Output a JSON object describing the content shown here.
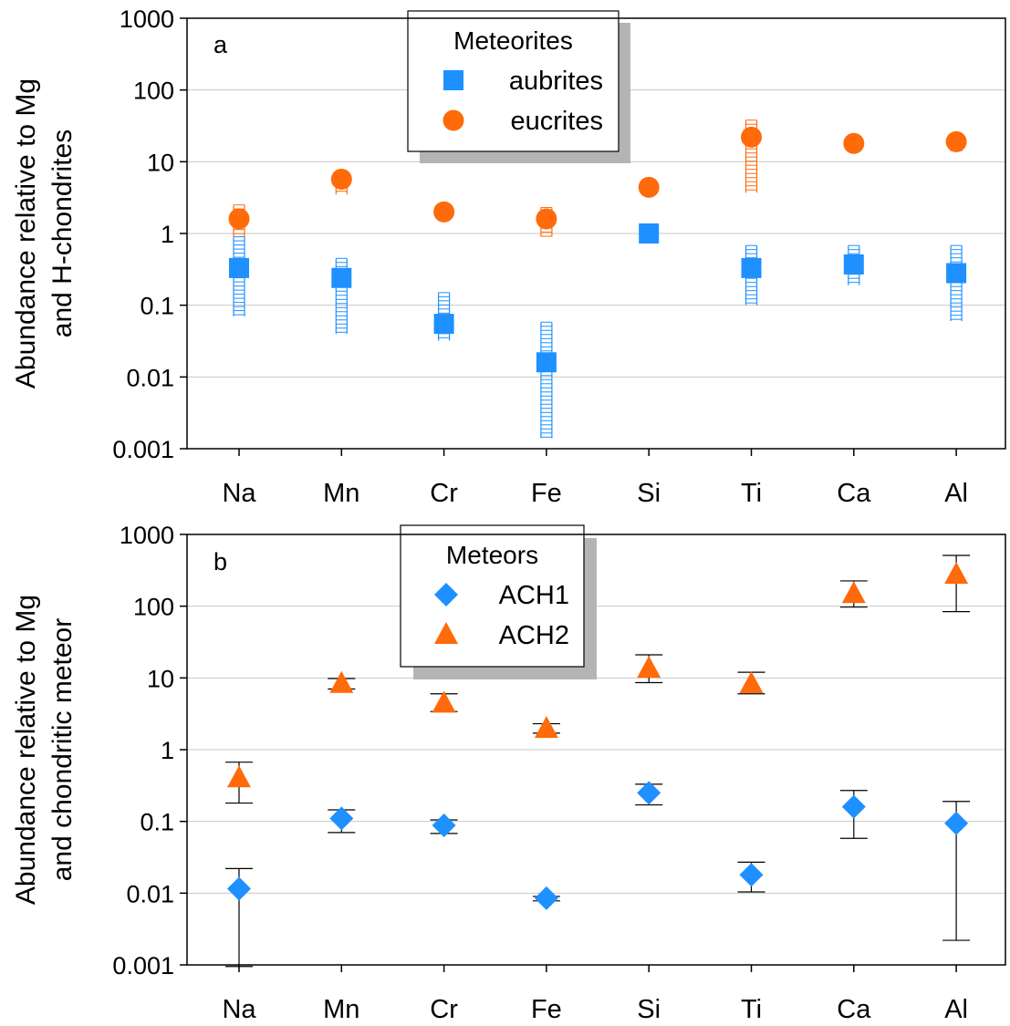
{
  "chart_data": [
    {
      "type": "scatter",
      "panel_label": "a",
      "ylabel_lines": [
        "Abundance relative to Mg",
        "and H-chondrites"
      ],
      "yscale": "log",
      "ylim": [
        0.001,
        1000
      ],
      "yticks": [
        "0.001",
        "0.01",
        "0.1",
        "1",
        "10",
        "100",
        "1000"
      ],
      "categories": [
        "Na",
        "Mn",
        "Cr",
        "Fe",
        "Si",
        "Ti",
        "Ca",
        "Al"
      ],
      "grid": "horizontal",
      "legend": {
        "title": "Meteorites",
        "placement": "top-center"
      },
      "series": [
        {
          "name": "aubrites",
          "marker": "square",
          "color": "#1e90ff",
          "error_style": "hatched",
          "values": [
            0.33,
            0.24,
            0.055,
            0.016,
            1.0,
            0.33,
            0.37,
            0.28
          ],
          "low": [
            0.07,
            0.04,
            0.032,
            0.0014,
            null,
            0.1,
            0.19,
            0.06
          ],
          "high": [
            0.9,
            0.45,
            0.15,
            0.058,
            null,
            0.68,
            0.68,
            0.68
          ]
        },
        {
          "name": "eucrites",
          "marker": "circle",
          "color": "#ff6a0a",
          "error_style": "hatched",
          "values": [
            1.6,
            5.7,
            2.0,
            1.6,
            4.4,
            22,
            18,
            19
          ],
          "low": [
            0.9,
            3.5,
            null,
            0.9,
            null,
            3.7,
            14,
            14
          ],
          "high": [
            2.5,
            7.5,
            null,
            2.3,
            null,
            38,
            21,
            23
          ]
        }
      ]
    },
    {
      "type": "scatter",
      "panel_label": "b",
      "ylabel_lines": [
        "Abundance relative to Mg",
        "and chondritic meteor"
      ],
      "yscale": "log",
      "ylim": [
        0.001,
        1000
      ],
      "yticks": [
        "0.001",
        "0.01",
        "0.1",
        "1",
        "10",
        "100",
        "1000"
      ],
      "categories": [
        "Na",
        "Mn",
        "Cr",
        "Fe",
        "Si",
        "Ti",
        "Ca",
        "Al"
      ],
      "grid": "horizontal",
      "legend": {
        "title": "Meteors",
        "placement": "top-center"
      },
      "series": [
        {
          "name": "ACH1",
          "marker": "diamond",
          "color": "#1e90ff",
          "error_style": "capped",
          "values": [
            0.0115,
            0.11,
            0.088,
            0.0085,
            0.25,
            0.018,
            0.16,
            0.094
          ],
          "low": [
            0.00095,
            0.07,
            0.068,
            0.0078,
            0.17,
            0.0104,
            0.058,
            0.0022
          ],
          "high": [
            0.022,
            0.145,
            0.105,
            0.009,
            0.33,
            0.027,
            0.27,
            0.19
          ]
        },
        {
          "name": "ACH2",
          "marker": "triangle",
          "color": "#ff6a0a",
          "error_style": "capped",
          "values": [
            0.4,
            8.3,
            4.4,
            1.95,
            13.5,
            8.2,
            148,
            275
          ],
          "low": [
            0.18,
            7.0,
            3.4,
            1.7,
            8.6,
            6.0,
            97,
            84
          ],
          "high": [
            0.67,
            9.8,
            6.0,
            2.3,
            21,
            12,
            225,
            510
          ]
        }
      ]
    }
  ]
}
